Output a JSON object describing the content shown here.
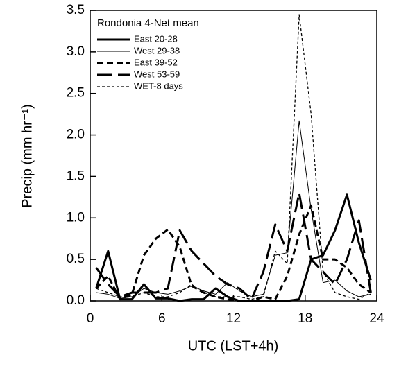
{
  "chart_data": {
    "type": "line",
    "annotation": "Rondonia 4-Net mean",
    "xlabel": "UTC (LST+4h)",
    "ylabel": "Precip  (mm hr⁻¹)",
    "x": [
      0.5,
      1.5,
      2.5,
      3.5,
      4.5,
      5.5,
      6.5,
      7.5,
      8.5,
      9.5,
      10.5,
      11.5,
      12.5,
      13.5,
      14.5,
      15.5,
      16.5,
      17.5,
      18.5,
      19.5,
      20.5,
      21.5,
      22.5,
      23.5
    ],
    "series": [
      {
        "name": "East 20-28",
        "color": "#000000",
        "width": 3,
        "dash": "none",
        "values": [
          0.15,
          0.6,
          0.02,
          0.02,
          0.2,
          0.03,
          0.03,
          0.0,
          0.02,
          0.02,
          0.15,
          0.05,
          0.0,
          0.0,
          0.0,
          0.0,
          0.0,
          0.02,
          0.5,
          0.55,
          0.85,
          1.28,
          0.7,
          0.25
        ]
      },
      {
        "name": "West 29-38",
        "color": "#000000",
        "width": 1,
        "dash": "none",
        "values": [
          0.1,
          0.08,
          0.03,
          0.05,
          0.15,
          0.1,
          0.08,
          0.12,
          0.18,
          0.12,
          0.08,
          0.22,
          0.12,
          0.05,
          0.08,
          0.55,
          0.58,
          2.17,
          1.1,
          0.22,
          0.25,
          0.12,
          0.05,
          0.08
        ]
      },
      {
        "name": "East 39-52",
        "color": "#000000",
        "width": 3,
        "dash": "9 5",
        "values": [
          0.15,
          0.3,
          0.02,
          0.08,
          0.55,
          0.75,
          0.86,
          0.65,
          0.18,
          0.1,
          0.05,
          0.02,
          0.0,
          0.0,
          0.05,
          0.02,
          0.3,
          0.8,
          1.15,
          0.5,
          0.5,
          0.4,
          0.2,
          0.1
        ]
      },
      {
        "name": "West 53-59",
        "color": "#000000",
        "width": 3,
        "dash": "22 8",
        "values": [
          0.4,
          0.2,
          0.05,
          0.1,
          0.1,
          0.1,
          0.15,
          0.85,
          0.6,
          0.45,
          0.3,
          0.2,
          0.15,
          0.02,
          0.35,
          0.92,
          0.6,
          1.3,
          0.5,
          0.35,
          0.2,
          0.5,
          0.97,
          0.1
        ]
      },
      {
        "name": "WET-8 days",
        "color": "#000000",
        "width": 1.3,
        "dash": "4 3",
        "values": [
          0.15,
          0.1,
          0.05,
          0.05,
          0.1,
          0.05,
          0.05,
          0.1,
          0.2,
          0.1,
          0.05,
          0.05,
          0.05,
          0.02,
          0.05,
          0.6,
          0.45,
          3.45,
          2.25,
          0.35,
          0.1,
          0.05,
          0.02,
          0.1
        ]
      }
    ],
    "xlim": [
      0,
      24
    ],
    "xticks": [
      0,
      6,
      12,
      18,
      24
    ],
    "ylim": [
      0,
      3.5
    ],
    "yticks": [
      {
        "value": 0,
        "label": "0.0"
      },
      {
        "value": 0.5,
        "label": "0.5"
      },
      {
        "value": 1,
        "label": "1.0"
      },
      {
        "value": 1.5,
        "label": "1.5"
      },
      {
        "value": 2,
        "label": "2.0"
      },
      {
        "value": 2.5,
        "label": "2.5"
      },
      {
        "value": 3,
        "label": "3.0"
      },
      {
        "value": 3.5,
        "label": "3.5"
      }
    ],
    "grid": false,
    "legend": "upper left"
  }
}
